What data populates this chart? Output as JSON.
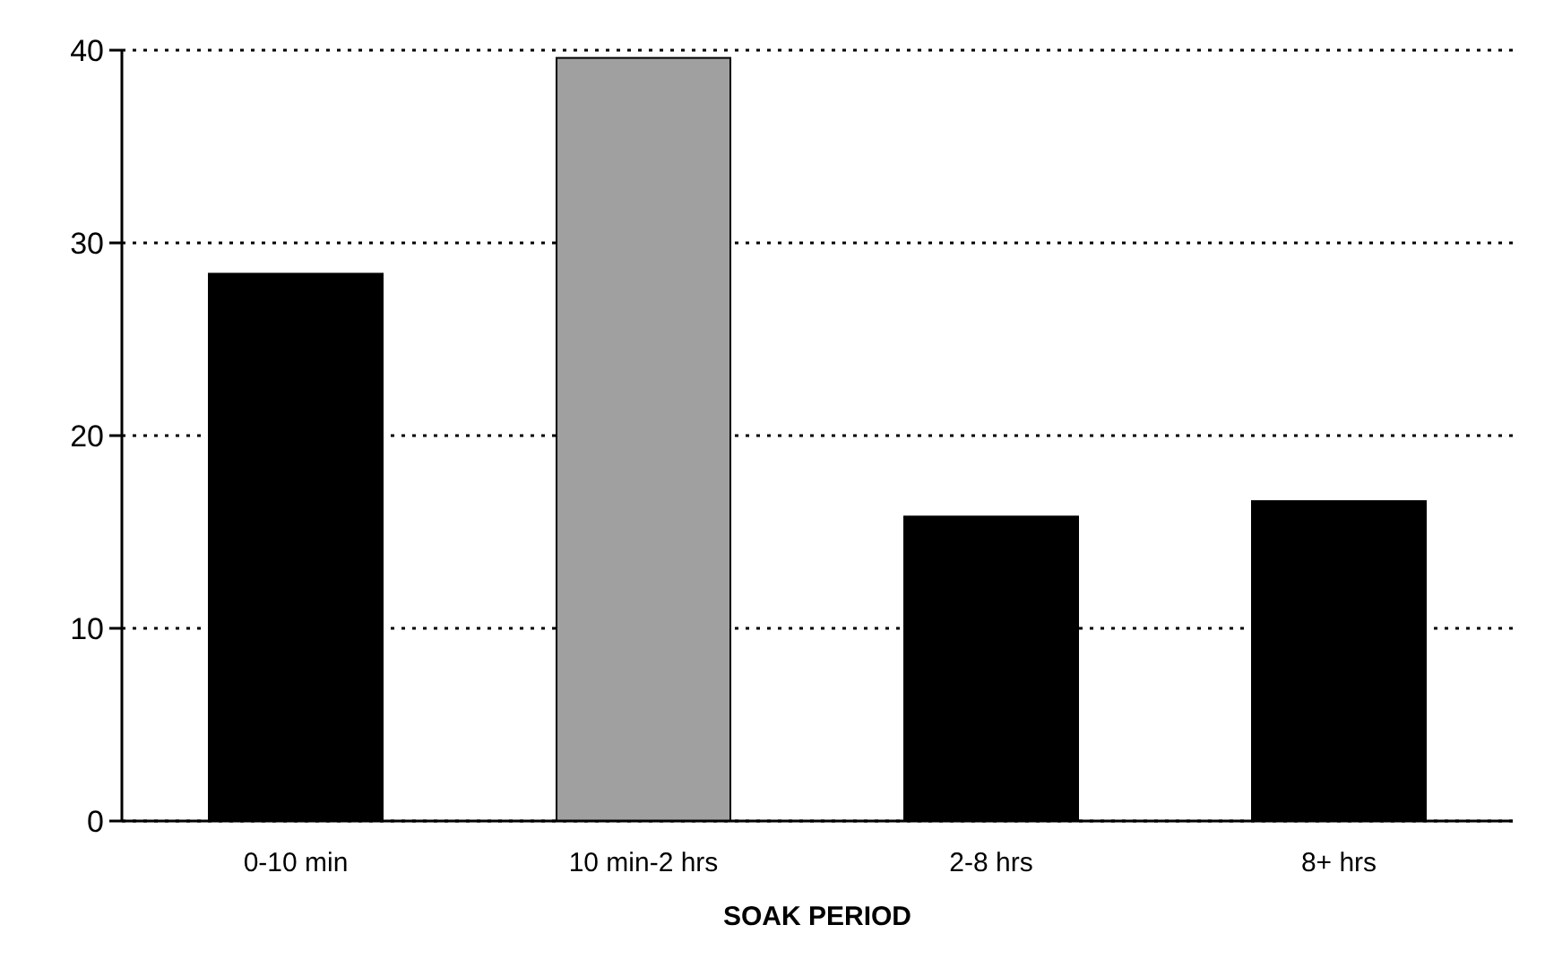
{
  "chart_data": {
    "type": "bar",
    "xlabel": "SOAK PERIOD",
    "categories": [
      "0-10 min",
      "10 min-2 hrs",
      "2-8 hrs",
      "8+ hrs"
    ],
    "values": [
      28.4,
      39.6,
      15.8,
      16.6
    ],
    "colors": [
      "#000000",
      "#a0a0a0",
      "#000000",
      "#000000"
    ],
    "ylim": [
      0,
      40
    ],
    "yticks": [
      0,
      10,
      20,
      30,
      40
    ],
    "grid": "y"
  }
}
